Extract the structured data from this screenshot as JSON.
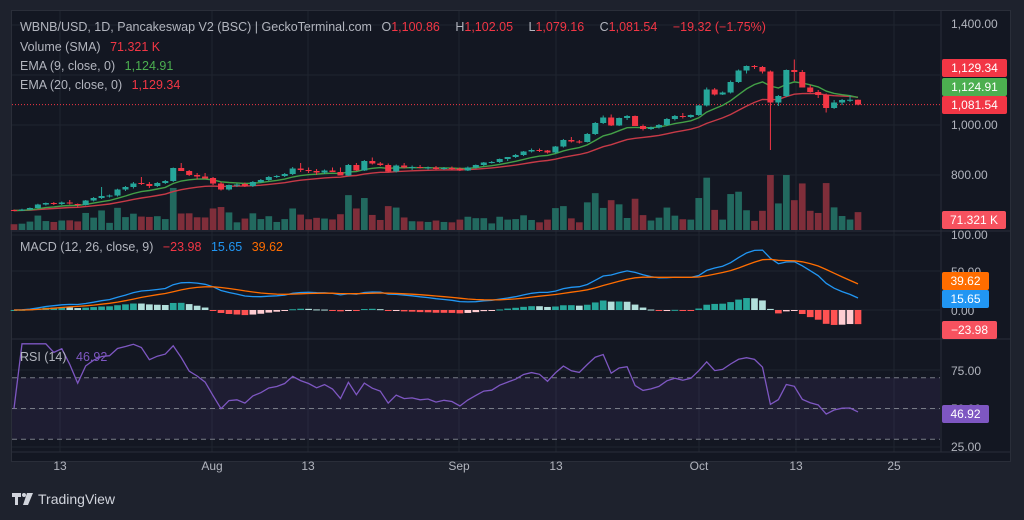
{
  "header": {
    "symbol_line": "WBNB/USD, 1D, Pancakeswap V2 (BSC) | GeckoTerminal.com",
    "ohlc": {
      "o_label": "O",
      "o_value": "1,100.86",
      "h_label": "H",
      "h_value": "1,102.05",
      "l_label": "L",
      "l_value": "1,079.16",
      "c_label": "C",
      "c_value": "1,081.54",
      "change": "−19.32 (−1.75%)"
    },
    "volume_label": "Volume (SMA)",
    "volume_value": "71.321 K",
    "ema9_label": "EMA (9, close, 0)",
    "ema9_value": "1,124.91",
    "ema20_label": "EMA (20, close, 0)",
    "ema20_value": "1,129.34"
  },
  "price_scale": {
    "ticks": [
      "1,400.00",
      "1,000.00",
      "800.00"
    ],
    "tags": {
      "ema20": "1,129.34",
      "ema9": "1,124.91",
      "close": "1,081.54",
      "volume": "71.321 K"
    }
  },
  "macd": {
    "label": "MACD (12, 26, close, 9)",
    "hist_value": "−23.98",
    "macd_value": "15.65",
    "signal_value": "39.62",
    "ticks": [
      "100.00",
      "50.00",
      "0.00"
    ],
    "tags": {
      "signal": "39.62",
      "macd": "15.65",
      "hist": "−23.98"
    }
  },
  "rsi": {
    "label": "RSI (14)",
    "value": "46.92",
    "ticks": [
      "75.00",
      "50.00",
      "25.00"
    ],
    "tag": "46.92"
  },
  "time_axis": [
    "13",
    "Aug",
    "13",
    "Sep",
    "13",
    "Oct",
    "13",
    "25"
  ],
  "brand": "TradingView",
  "colors": {
    "up": "#26a69a",
    "down": "#f23645",
    "ema9": "#4caf50",
    "ema20": "#f23645",
    "macd": "#2196f3",
    "signal": "#ff6d00",
    "rsi": "#7e57c2",
    "background": "#131722",
    "outer": "#1e222d"
  },
  "chart_data": [
    {
      "type": "candlestick",
      "title": "WBNB/USD, 1D, Pancakeswap V2 (BSC)",
      "ylim": [
        700,
        1420
      ],
      "y_ticks": [
        800,
        1000,
        1400
      ],
      "x_ticks": [
        "13",
        "Aug",
        "13",
        "Sep",
        "13",
        "Oct",
        "13",
        "25"
      ],
      "last": {
        "open": 1100.86,
        "high": 1102.05,
        "low": 1079.16,
        "close": 1081.54,
        "change": -19.32,
        "change_pct": -1.75
      },
      "candles": [
        [
          660,
          662,
          655,
          658
        ],
        [
          660,
          665,
          656,
          662
        ],
        [
          662,
          670,
          660,
          668
        ],
        [
          668,
          685,
          666,
          682
        ],
        [
          682,
          690,
          678,
          688
        ],
        [
          688,
          692,
          680,
          684
        ],
        [
          684,
          694,
          680,
          690
        ],
        [
          690,
          700,
          682,
          686
        ],
        [
          684,
          686,
          672,
          680
        ],
        [
          680,
          700,
          678,
          698
        ],
        [
          698,
          712,
          694,
          708
        ],
        [
          708,
          752,
          704,
          716
        ],
        [
          716,
          722,
          710,
          718
        ],
        [
          718,
          745,
          714,
          742
        ],
        [
          742,
          756,
          736,
          752
        ],
        [
          752,
          772,
          746,
          766
        ],
        [
          768,
          792,
          760,
          764
        ],
        [
          764,
          772,
          748,
          756
        ],
        [
          756,
          772,
          752,
          768
        ],
        [
          768,
          780,
          764,
          776
        ],
        [
          776,
          830,
          772,
          828
        ],
        [
          828,
          848,
          818,
          816
        ],
        [
          816,
          820,
          796,
          800
        ],
        [
          800,
          808,
          782,
          794
        ],
        [
          794,
          808,
          786,
          786
        ],
        [
          788,
          792,
          760,
          766
        ],
        [
          766,
          772,
          738,
          742
        ],
        [
          742,
          762,
          738,
          760
        ],
        [
          760,
          766,
          752,
          762
        ],
        [
          764,
          770,
          752,
          756
        ],
        [
          756,
          776,
          752,
          772
        ],
        [
          772,
          784,
          768,
          780
        ],
        [
          780,
          796,
          776,
          792
        ],
        [
          792,
          800,
          788,
          796
        ],
        [
          796,
          808,
          792,
          804
        ],
        [
          804,
          832,
          800,
          826
        ],
        [
          826,
          848,
          812,
          820
        ],
        [
          820,
          830,
          808,
          816
        ],
        [
          816,
          824,
          800,
          810
        ],
        [
          810,
          822,
          804,
          818
        ],
        [
          818,
          830,
          812,
          812
        ],
        [
          812,
          830,
          806,
          798
        ],
        [
          798,
          844,
          796,
          840
        ],
        [
          840,
          848,
          816,
          818
        ],
        [
          818,
          860,
          816,
          856
        ],
        [
          856,
          870,
          842,
          846
        ],
        [
          846,
          852,
          836,
          840
        ],
        [
          840,
          846,
          812,
          814
        ],
        [
          814,
          842,
          810,
          838
        ],
        [
          838,
          848,
          826,
          830
        ],
        [
          830,
          838,
          820,
          832
        ],
        [
          832,
          840,
          826,
          828
        ],
        [
          826,
          834,
          822,
          830
        ],
        [
          830,
          836,
          822,
          824
        ],
        [
          824,
          832,
          820,
          828
        ],
        [
          828,
          834,
          820,
          826
        ],
        [
          826,
          830,
          816,
          818
        ],
        [
          818,
          834,
          816,
          830
        ],
        [
          830,
          842,
          826,
          840
        ],
        [
          840,
          852,
          836,
          850
        ],
        [
          850,
          856,
          846,
          852
        ],
        [
          852,
          866,
          848,
          864
        ],
        [
          864,
          870,
          856,
          872
        ],
        [
          872,
          884,
          868,
          880
        ],
        [
          880,
          896,
          876,
          894
        ],
        [
          894,
          906,
          890,
          900
        ],
        [
          900,
          906,
          892,
          898
        ],
        [
          898,
          900,
          886,
          890
        ],
        [
          890,
          916,
          886,
          914
        ],
        [
          914,
          944,
          910,
          940
        ],
        [
          940,
          952,
          930,
          934
        ],
        [
          934,
          940,
          926,
          932
        ],
        [
          932,
          968,
          930,
          964
        ],
        [
          964,
          1012,
          960,
          1008
        ],
        [
          1008,
          1038,
          1004,
          1030
        ],
        [
          1030,
          1042,
          996,
          998
        ],
        [
          998,
          1030,
          996,
          1028
        ],
        [
          1028,
          1040,
          1020,
          1036
        ],
        [
          1036,
          1038,
          1000,
          996
        ],
        [
          996,
          1002,
          978,
          984
        ],
        [
          984,
          994,
          980,
          990
        ],
        [
          990,
          1004,
          986,
          1000
        ],
        [
          1000,
          1028,
          996,
          1024
        ],
        [
          1024,
          1040,
          1018,
          1036
        ],
        [
          1036,
          1048,
          1026,
          1032
        ],
        [
          1032,
          1042,
          1028,
          1040
        ],
        [
          1040,
          1080,
          1036,
          1078
        ],
        [
          1078,
          1150,
          1074,
          1142
        ],
        [
          1142,
          1148,
          1118,
          1122
        ],
        [
          1122,
          1134,
          1120,
          1130
        ],
        [
          1130,
          1178,
          1126,
          1172
        ],
        [
          1172,
          1222,
          1168,
          1218
        ],
        [
          1218,
          1238,
          1206,
          1236
        ],
        [
          1236,
          1240,
          1224,
          1232
        ],
        [
          1232,
          1236,
          1206,
          1214
        ],
        [
          1214,
          1218,
          900,
          1090
        ],
        [
          1090,
          1120,
          1076,
          1116
        ],
        [
          1116,
          1222,
          1112,
          1220
        ],
        [
          1220,
          1262,
          1176,
          1212
        ],
        [
          1212,
          1220,
          1162,
          1150
        ],
        [
          1150,
          1160,
          1130,
          1132
        ],
        [
          1132,
          1140,
          1108,
          1120
        ],
        [
          1120,
          1126,
          1050,
          1068
        ],
        [
          1068,
          1100,
          1064,
          1090
        ],
        [
          1090,
          1104,
          1080,
          1100
        ],
        [
          1100,
          1118,
          1092,
          1101
        ],
        [
          1100.86,
          1102.05,
          1079.16,
          1081.54
        ]
      ],
      "series": [
        {
          "name": "EMA (9, close, 0)",
          "last": 1124.91
        },
        {
          "name": "EMA (20, close, 0)",
          "last": 1129.34
        },
        {
          "name": "Volume (SMA)",
          "last": "71.321K"
        }
      ]
    },
    {
      "type": "line",
      "title": "MACD (12, 26, close, 9)",
      "ylim": [
        -40,
        110
      ],
      "y_ticks": [
        0,
        50,
        100
      ],
      "series": [
        {
          "name": "MACD",
          "last": 15.65
        },
        {
          "name": "Signal",
          "last": 39.62
        },
        {
          "name": "Histogram",
          "last": -23.98
        }
      ]
    },
    {
      "type": "line",
      "title": "RSI (14)",
      "ylim": [
        20,
        95
      ],
      "y_ticks": [
        25,
        50,
        75
      ],
      "bands": [
        30,
        50,
        70
      ],
      "series": [
        {
          "name": "RSI",
          "last": 46.92
        }
      ]
    }
  ]
}
